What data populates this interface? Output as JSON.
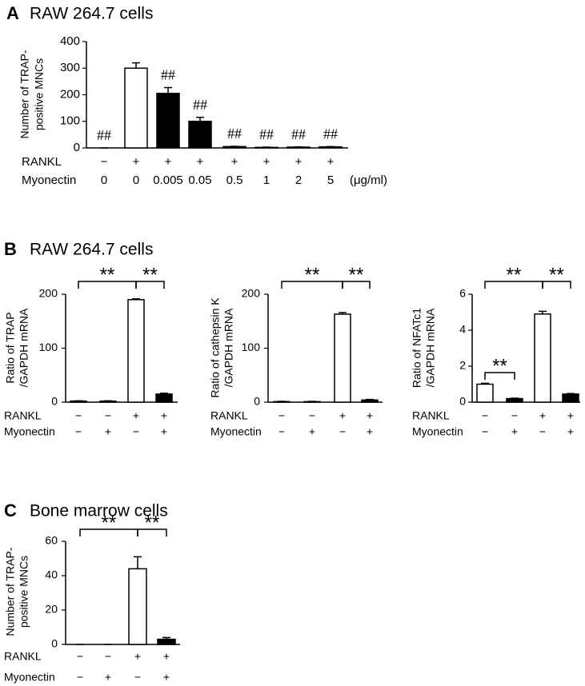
{
  "chart_data": [
    {
      "type": "bar",
      "panel": "A",
      "title": "RAW 264.7 cells",
      "ylabel": [
        "Number of TRAP-",
        "positive MNCs"
      ],
      "ylim": [
        0,
        400
      ],
      "yticks": [
        0,
        100,
        200,
        300,
        400
      ],
      "values": [
        0,
        300,
        205,
        100,
        5,
        2,
        3,
        4
      ],
      "errors": [
        0,
        20,
        22,
        15,
        1,
        1,
        1,
        1
      ],
      "colors": [
        "#ffffff",
        "#ffffff",
        "#000000",
        "#000000",
        "#000000",
        "#000000",
        "#000000",
        "#000000"
      ],
      "rows": [
        {
          "label": "RANKL",
          "values": [
            "−",
            "+",
            "+",
            "+",
            "+",
            "+",
            "+",
            "+"
          ]
        },
        {
          "label": "Myonectin",
          "values": [
            "0",
            "0",
            "0.005",
            "0.05",
            "0.5",
            "1",
            "2",
            "5"
          ]
        }
      ],
      "unit": "(μg/ml)",
      "value_annotations": [
        "##",
        null,
        "##",
        "##",
        "##",
        "##",
        "##",
        "##"
      ]
    },
    {
      "type": "bar",
      "panel": "B",
      "title": "RAW 264.7 cells",
      "ylabel": [
        "Ratio of TRAP",
        "/GAPDH mRNA"
      ],
      "ylim": [
        0,
        200
      ],
      "yticks": [
        0,
        100,
        200
      ],
      "values": [
        2,
        2,
        190,
        15
      ],
      "errors": [
        0.5,
        0.5,
        1.5,
        1.5
      ],
      "colors": [
        "#ffffff",
        "#000000",
        "#ffffff",
        "#000000"
      ],
      "rows": [
        {
          "label": "RANKL",
          "values": [
            "−",
            "−",
            "+",
            "+"
          ]
        },
        {
          "label": "Myonectin",
          "values": [
            "−",
            "+",
            "−",
            "+"
          ]
        }
      ],
      "significance": [
        "**",
        "**"
      ]
    },
    {
      "type": "bar",
      "ylabel": [
        "Ratio of cathepsin K",
        "/GAPDH mRNA"
      ],
      "ylim": [
        0,
        200
      ],
      "yticks": [
        0,
        100,
        200
      ],
      "values": [
        1,
        1,
        163,
        4
      ],
      "errors": [
        0.5,
        0.5,
        3,
        1
      ],
      "colors": [
        "#ffffff",
        "#000000",
        "#ffffff",
        "#000000"
      ],
      "rows": [
        {
          "label": "RANKL",
          "values": [
            "−",
            "−",
            "+",
            "+"
          ]
        },
        {
          "label": "Myonectin",
          "values": [
            "−",
            "+",
            "−",
            "+"
          ]
        }
      ],
      "significance": [
        "**",
        "**"
      ]
    },
    {
      "type": "bar",
      "ylabel": [
        "Ratio of NFATc1",
        "/GAPDH mRNA"
      ],
      "ylim": [
        0,
        6
      ],
      "yticks": [
        0,
        2,
        4,
        6
      ],
      "values": [
        1,
        0.2,
        4.9,
        0.45
      ],
      "errors": [
        0.05,
        0.02,
        0.15,
        0.03
      ],
      "colors": [
        "#ffffff",
        "#000000",
        "#ffffff",
        "#000000"
      ],
      "rows": [
        {
          "label": "RANKL",
          "values": [
            "−",
            "−",
            "+",
            "+"
          ]
        },
        {
          "label": "Myonectin",
          "values": [
            "−",
            "+",
            "−",
            "+"
          ]
        }
      ],
      "significance": [
        "**",
        "**",
        "**"
      ]
    },
    {
      "type": "bar",
      "panel": "C",
      "title": "Bone marrow cells",
      "ylabel": [
        "Number of TRAP-",
        "positive MNCs"
      ],
      "ylim": [
        0,
        60
      ],
      "yticks": [
        0,
        20,
        40,
        60
      ],
      "values": [
        0,
        0,
        44,
        3
      ],
      "errors": [
        0,
        0,
        7,
        1
      ],
      "colors": [
        "#ffffff",
        "#000000",
        "#ffffff",
        "#000000"
      ],
      "rows": [
        {
          "label": "RANKL",
          "values": [
            "−",
            "−",
            "+",
            "+"
          ]
        },
        {
          "label": "Myonectin",
          "values": [
            "−",
            "+",
            "−",
            "+"
          ]
        }
      ],
      "significance": [
        "**",
        "**"
      ]
    }
  ]
}
